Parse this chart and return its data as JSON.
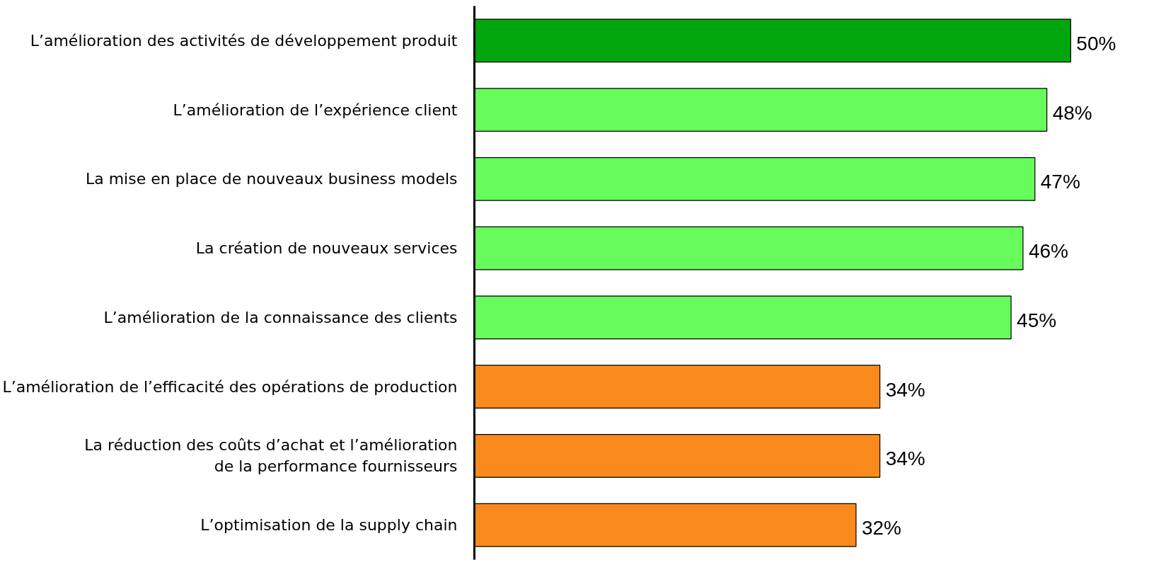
{
  "chart_data": {
    "type": "bar",
    "orientation": "horizontal",
    "categories": [
      "L’amélioration des activités de développement produit",
      "L’amélioration de l’expérience client",
      "La mise en place de nouveaux business models",
      "La création de nouveaux services",
      "L’amélioration de la connaissance des clients",
      "L’amélioration de l’efficacité des opérations de production",
      "La réduction des coûts d’achat et l’amélioration\nde la performance fournisseurs",
      "L’optimisation de la supply chain"
    ],
    "values": [
      50,
      48,
      47,
      46,
      45,
      34,
      34,
      32
    ],
    "value_labels": [
      "50%",
      "48%",
      "47%",
      "46%",
      "45%",
      "34%",
      "34%",
      "32%"
    ],
    "colors": [
      "#00a60c",
      "#66fc5c",
      "#66fc5c",
      "#66fc5c",
      "#66fc5c",
      "#fb8a1d",
      "#fb8a1d",
      "#fb8a1d"
    ]
  }
}
